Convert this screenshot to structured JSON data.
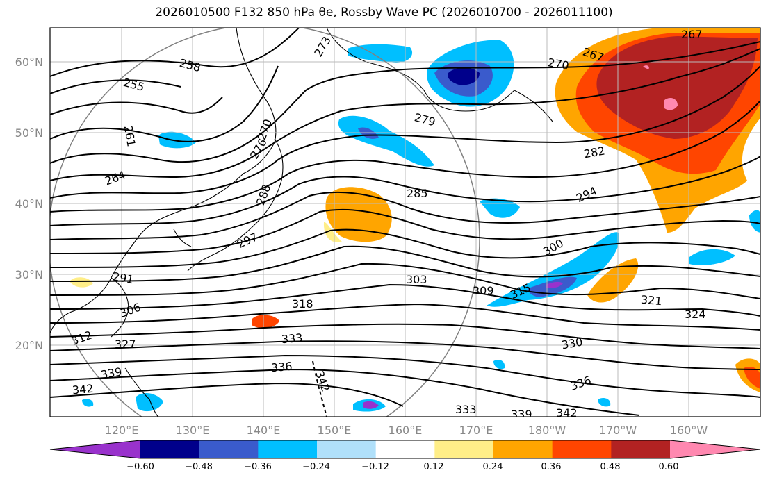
{
  "title": "2026010500 F132 850 hPa θe, Rossby Wave PC (2026010700 - 2026011100)",
  "map": {
    "lon_ticks": [
      "120°E",
      "130°E",
      "140°E",
      "150°E",
      "160°E",
      "170°E",
      "180°W",
      "170°W",
      "160°W"
    ],
    "lat_ticks": [
      "60°N",
      "50°N",
      "40°N",
      "30°N",
      "20°N"
    ],
    "contour_labels": [
      "273",
      "267",
      "258",
      "255",
      "261",
      "264",
      "270",
      "276",
      "267",
      "270",
      "279",
      "282",
      "285",
      "288",
      "294",
      "297",
      "300",
      "291",
      "303",
      "309",
      "315",
      "306",
      "318",
      "321",
      "324",
      "312",
      "327",
      "333",
      "330",
      "336",
      "339",
      "342",
      "336",
      "342",
      "333",
      "342",
      "339"
    ],
    "colorbar": {
      "ticks": [
        "−0.60",
        "−0.48",
        "−0.36",
        "−0.24",
        "−0.12",
        "0.12",
        "0.24",
        "0.36",
        "0.48",
        "0.60"
      ],
      "colors": [
        "#9932CC",
        "#00008B",
        "#3A5BCC",
        "#00BFFF",
        "#B0E0FA",
        "#FFFFFF",
        "#FFEE88",
        "#FFA500",
        "#FF4500",
        "#B22222",
        "#FF88B0"
      ]
    }
  }
}
